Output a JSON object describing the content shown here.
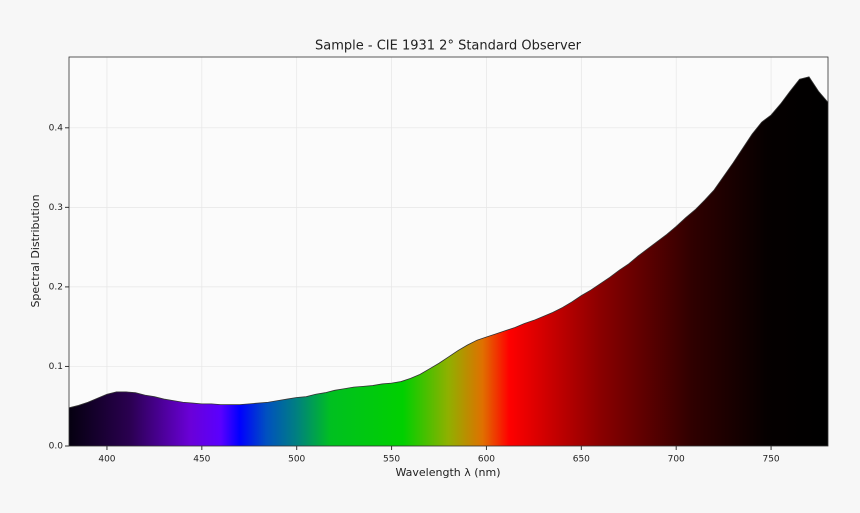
{
  "chart_data": {
    "type": "area",
    "title": "Sample - CIE 1931 2° Standard Observer",
    "x_label": "Wavelength λ (nm)",
    "y_label": "Spectral Distribution",
    "x": [
      380,
      385,
      390,
      395,
      400,
      405,
      410,
      415,
      420,
      425,
      430,
      435,
      440,
      445,
      450,
      455,
      460,
      465,
      470,
      475,
      480,
      485,
      490,
      495,
      500,
      505,
      510,
      515,
      520,
      525,
      530,
      535,
      540,
      545,
      550,
      555,
      560,
      565,
      570,
      575,
      580,
      585,
      590,
      595,
      600,
      605,
      610,
      615,
      620,
      625,
      630,
      635,
      640,
      645,
      650,
      655,
      660,
      665,
      670,
      675,
      680,
      685,
      690,
      695,
      700,
      705,
      710,
      715,
      720,
      725,
      730,
      735,
      740,
      745,
      750,
      755,
      760,
      765,
      770,
      775,
      780
    ],
    "values": [
      0.048,
      0.051,
      0.055,
      0.06,
      0.065,
      0.068,
      0.068,
      0.067,
      0.064,
      0.062,
      0.059,
      0.057,
      0.055,
      0.054,
      0.053,
      0.053,
      0.052,
      0.052,
      0.052,
      0.053,
      0.054,
      0.055,
      0.057,
      0.059,
      0.061,
      0.062,
      0.065,
      0.067,
      0.07,
      0.072,
      0.074,
      0.075,
      0.076,
      0.078,
      0.079,
      0.081,
      0.085,
      0.09,
      0.097,
      0.104,
      0.112,
      0.12,
      0.127,
      0.133,
      0.137,
      0.141,
      0.145,
      0.149,
      0.154,
      0.158,
      0.163,
      0.168,
      0.174,
      0.181,
      0.189,
      0.196,
      0.204,
      0.212,
      0.221,
      0.229,
      0.239,
      0.248,
      0.257,
      0.266,
      0.276,
      0.287,
      0.297,
      0.309,
      0.322,
      0.339,
      0.356,
      0.374,
      0.392,
      0.407,
      0.416,
      0.43,
      0.446,
      0.461,
      0.464,
      0.446,
      0.432
    ],
    "xlim": [
      380,
      780
    ],
    "ylim": [
      0,
      0.489
    ],
    "xticks": [
      400,
      450,
      500,
      550,
      600,
      650,
      700,
      750
    ],
    "yticks": [
      {
        "value": 0,
        "label": "0.0"
      },
      0.1,
      0.2,
      0.3,
      0.4
    ],
    "grid": true
  }
}
